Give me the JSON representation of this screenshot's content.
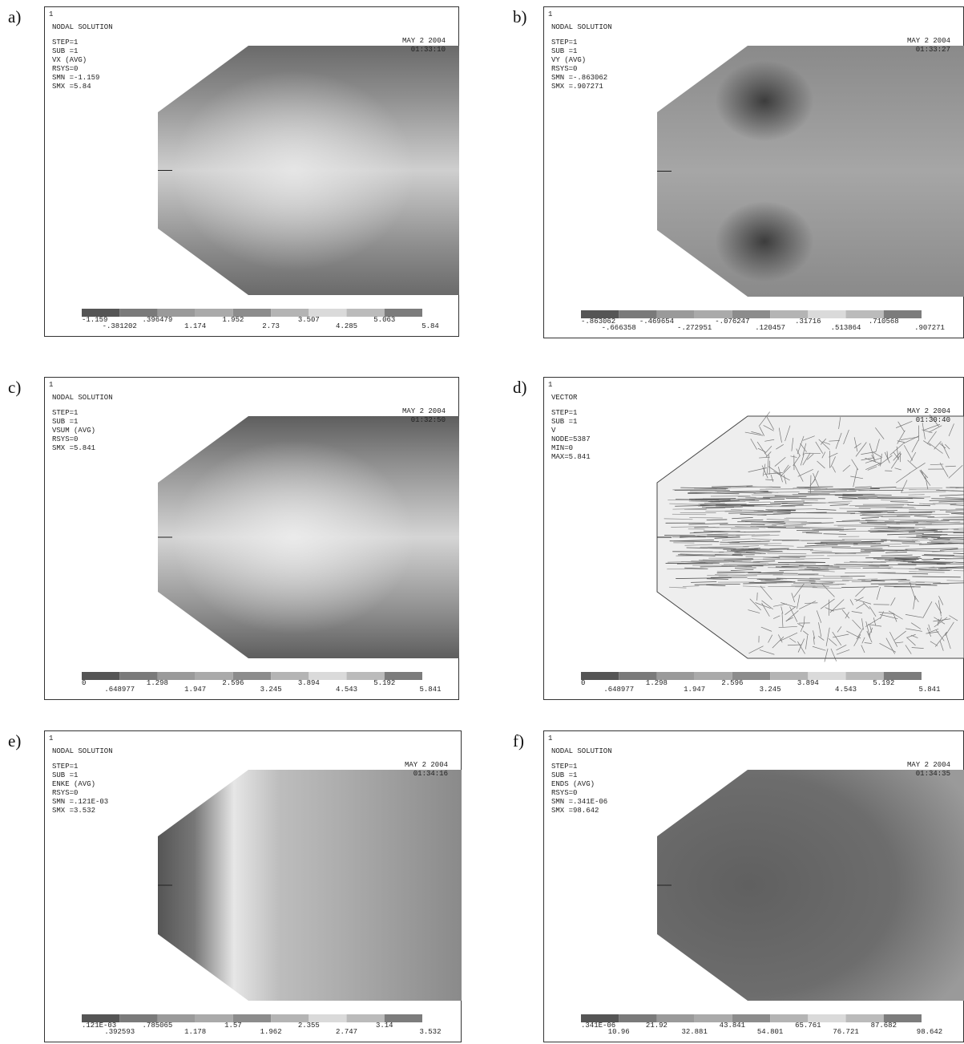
{
  "panels": [
    {
      "label": "a)",
      "corner": "1",
      "header": [
        "NODAL SOLUTION",
        "STEP=1",
        "SUB =1",
        "VX       (AVG)",
        "RSYS=0",
        "SMN =-1.159",
        "SMX =5.84"
      ],
      "date": "MAY  2 2004",
      "time": "01:33:10",
      "legend": [
        "-1.159",
        "-.381202",
        ".396479",
        "1.174",
        "1.952",
        "2.73",
        "3.507",
        "4.285",
        "5.063",
        "5.84"
      ]
    },
    {
      "label": "b)",
      "corner": "1",
      "header": [
        "NODAL SOLUTION",
        "STEP=1",
        "SUB =1",
        "VY       (AVG)",
        "RSYS=0",
        "SMN =-.863062",
        "SMX =.907271"
      ],
      "date": "MAY  2 2004",
      "time": "01:33:27",
      "legend": [
        "-.863062",
        "-.666358",
        "-.469654",
        "-.272951",
        "-.076247",
        ".120457",
        ".31716",
        ".513864",
        ".710568",
        ".907271"
      ]
    },
    {
      "label": "c)",
      "corner": "1",
      "header": [
        "NODAL SOLUTION",
        "STEP=1",
        "SUB =1",
        "VSUM     (AVG)",
        "RSYS=0",
        "SMX =5.841"
      ],
      "date": "MAY  2 2004",
      "time": "01:32:50",
      "legend": [
        "0",
        ".648977",
        "1.298",
        "1.947",
        "2.596",
        "3.245",
        "3.894",
        "4.543",
        "5.192",
        "5.841"
      ]
    },
    {
      "label": "d)",
      "corner": "1",
      "header": [
        "VECTOR",
        "STEP=1",
        "SUB =1",
        "V",
        "NODE=5387",
        "MIN=0",
        "MAX=5.841"
      ],
      "date": "MAY  2 2004",
      "time": "01:30:40",
      "legend": [
        "0",
        ".648977",
        "1.298",
        "1.947",
        "2.596",
        "3.245",
        "3.894",
        "4.543",
        "5.192",
        "5.841"
      ]
    },
    {
      "label": "e)",
      "corner": "1",
      "header": [
        "NODAL SOLUTION",
        "STEP=1",
        "SUB =1",
        "ENKE     (AVG)",
        "RSYS=0",
        "SMN =.121E-03",
        "SMX =3.532"
      ],
      "date": "MAY  2 2004",
      "time": "01:34:16",
      "legend": [
        ".121E-03",
        ".392593",
        ".785065",
        "1.178",
        "1.57",
        "1.962",
        "2.355",
        "2.747",
        "3.14",
        "3.532"
      ]
    },
    {
      "label": "f)",
      "corner": "1",
      "header": [
        "NODAL SOLUTION",
        "STEP=1",
        "SUB =1",
        "ENDS     (AVG)",
        "RSYS=0",
        "SMN =.341E-06",
        "SMX =98.642"
      ],
      "date": "MAY  2 2004",
      "time": "01:34:35",
      "legend": [
        ".341E-06",
        "10.96",
        "21.92",
        "32.881",
        "43.841",
        "54.801",
        "65.761",
        "76.721",
        "87.682",
        "98.642"
      ]
    }
  ]
}
